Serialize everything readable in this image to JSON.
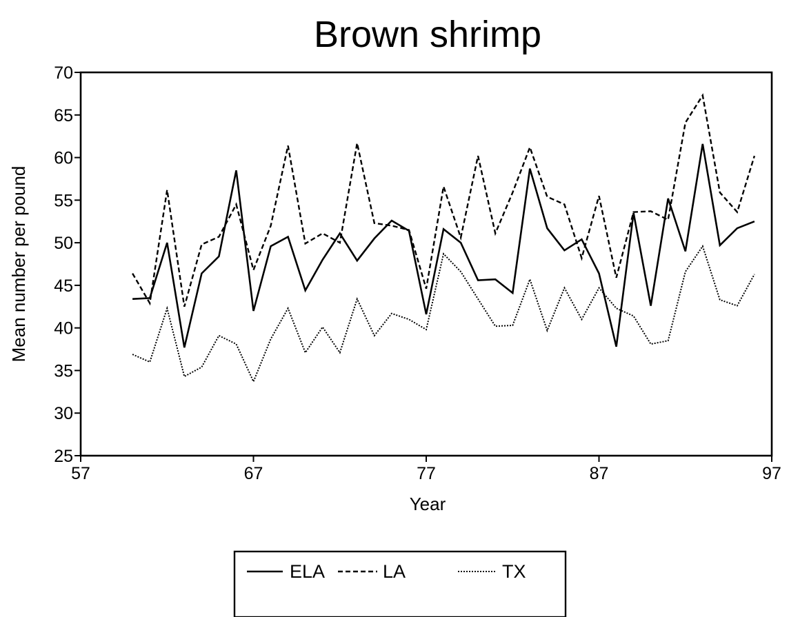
{
  "chart_data": {
    "type": "line",
    "title": "Brown shrimp",
    "xlabel": "Year",
    "ylabel": "Mean number per pound",
    "xlim": [
      57,
      97
    ],
    "ylim": [
      25,
      70
    ],
    "xticks": [
      "57",
      "67",
      "77",
      "87",
      "97"
    ],
    "yticks": [
      "25",
      "30",
      "35",
      "40",
      "45",
      "50",
      "55",
      "60",
      "65",
      "70"
    ],
    "x": [
      60,
      61,
      62,
      63,
      64,
      65,
      66,
      67,
      68,
      69,
      70,
      71,
      72,
      73,
      74,
      75,
      76,
      77,
      78,
      79,
      80,
      81,
      82,
      83,
      84,
      85,
      86,
      87,
      88,
      89,
      90,
      91,
      92,
      93,
      94,
      95,
      96
    ],
    "series": [
      {
        "name": "ELA",
        "dash": "",
        "width": 2.6,
        "values": [
          43.4,
          43.5,
          50.0,
          37.7,
          46.4,
          48.4,
          58.5,
          42.0,
          49.6,
          50.7,
          44.4,
          48.0,
          51.1,
          47.9,
          50.5,
          52.6,
          51.4,
          41.6,
          51.6,
          50.0,
          45.6,
          45.7,
          44.1,
          58.7,
          51.7,
          49.1,
          50.4,
          46.4,
          37.8,
          53.5,
          42.6,
          55.2,
          49.0,
          61.6,
          49.7,
          51.7,
          52.5
        ]
      },
      {
        "name": "LA",
        "dash": "7,4",
        "width": 2.4,
        "values": [
          46.4,
          42.9,
          56.2,
          42.5,
          49.8,
          50.7,
          54.5,
          46.8,
          52.0,
          61.4,
          49.9,
          51.1,
          50.0,
          61.7,
          52.3,
          52.0,
          51.5,
          44.6,
          56.6,
          50.6,
          60.2,
          51.1,
          55.9,
          61.2,
          55.4,
          54.5,
          48.2,
          55.5,
          45.9,
          53.6,
          53.7,
          52.7,
          64.1,
          67.3,
          55.9,
          53.6,
          60.2
        ]
      },
      {
        "name": "TX",
        "dash": "2,2",
        "width": 2.0,
        "values": [
          36.9,
          36.0,
          42.3,
          34.3,
          35.4,
          39.1,
          38.1,
          33.7,
          38.7,
          42.3,
          37.1,
          40.1,
          37.1,
          43.4,
          39.1,
          41.7,
          41.0,
          39.8,
          48.7,
          46.6,
          43.4,
          40.2,
          40.3,
          45.7,
          39.7,
          44.7,
          41.0,
          44.7,
          42.3,
          41.4,
          38.1,
          38.5,
          46.6,
          49.6,
          43.3,
          42.6,
          46.3
        ]
      }
    ],
    "legend": "bottom-center",
    "grid": false
  }
}
